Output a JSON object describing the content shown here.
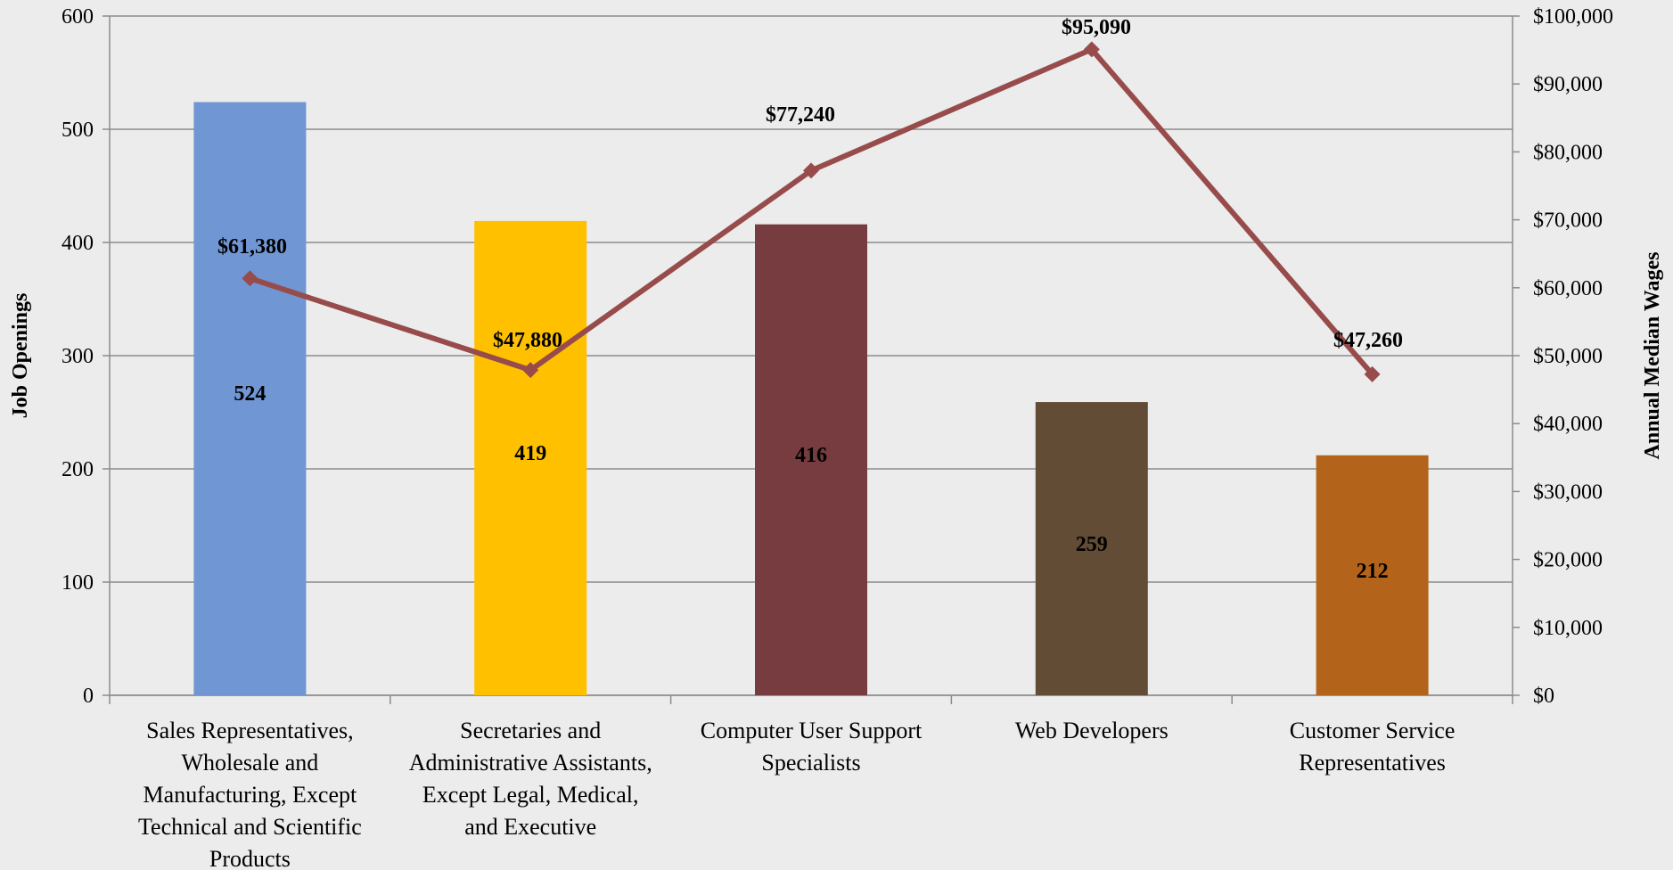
{
  "chart_data": {
    "type": "bar",
    "categories": [
      [
        "Sales Representatives,",
        "Wholesale and",
        "Manufacturing, Except",
        "Technical and Scientific",
        "Products"
      ],
      [
        "Secretaries and",
        "Administrative Assistants,",
        "Except Legal, Medical,",
        "and Executive"
      ],
      [
        "Computer User Support",
        "Specialists"
      ],
      [
        "Web Developers"
      ],
      [
        "Customer Service",
        "Representatives"
      ]
    ],
    "series": [
      {
        "type": "bar",
        "axis": "left",
        "values": [
          524,
          419,
          416,
          259,
          212
        ],
        "value_labels": [
          "524",
          "419",
          "416",
          "259",
          "212"
        ],
        "colors": [
          "#7096d4",
          "#ffc000",
          "#763c3f",
          "#624c35",
          "#b3641a"
        ]
      },
      {
        "type": "line",
        "axis": "right",
        "values": [
          61380,
          47880,
          77240,
          95090,
          47260
        ],
        "value_labels": [
          "$61,380",
          "$47,880",
          "$77,240",
          "$95,090",
          "$47,260"
        ],
        "color": "#974c4b"
      }
    ],
    "y_left": {
      "title": "Job Openings",
      "range": [
        0,
        600
      ],
      "ticks": [
        0,
        100,
        200,
        300,
        400,
        500,
        600
      ],
      "tick_labels": [
        "0",
        "100",
        "200",
        "300",
        "400",
        "500",
        "600"
      ]
    },
    "y_right": {
      "title": "Annual Median Wages",
      "range": [
        0,
        100000
      ],
      "ticks": [
        0,
        10000,
        20000,
        30000,
        40000,
        50000,
        60000,
        70000,
        80000,
        90000,
        100000
      ],
      "tick_labels": [
        "$0",
        "$10,000",
        "$20,000",
        "$30,000",
        "$40,000",
        "$50,000",
        "$60,000",
        "$70,000",
        "$80,000",
        "$90,000",
        "$100,000"
      ]
    },
    "grid": true,
    "legend": "none",
    "colors": {
      "background": "#ececec",
      "grid": "#8c8c8c",
      "axis": "#8c8c8c",
      "text": "#000000"
    }
  }
}
